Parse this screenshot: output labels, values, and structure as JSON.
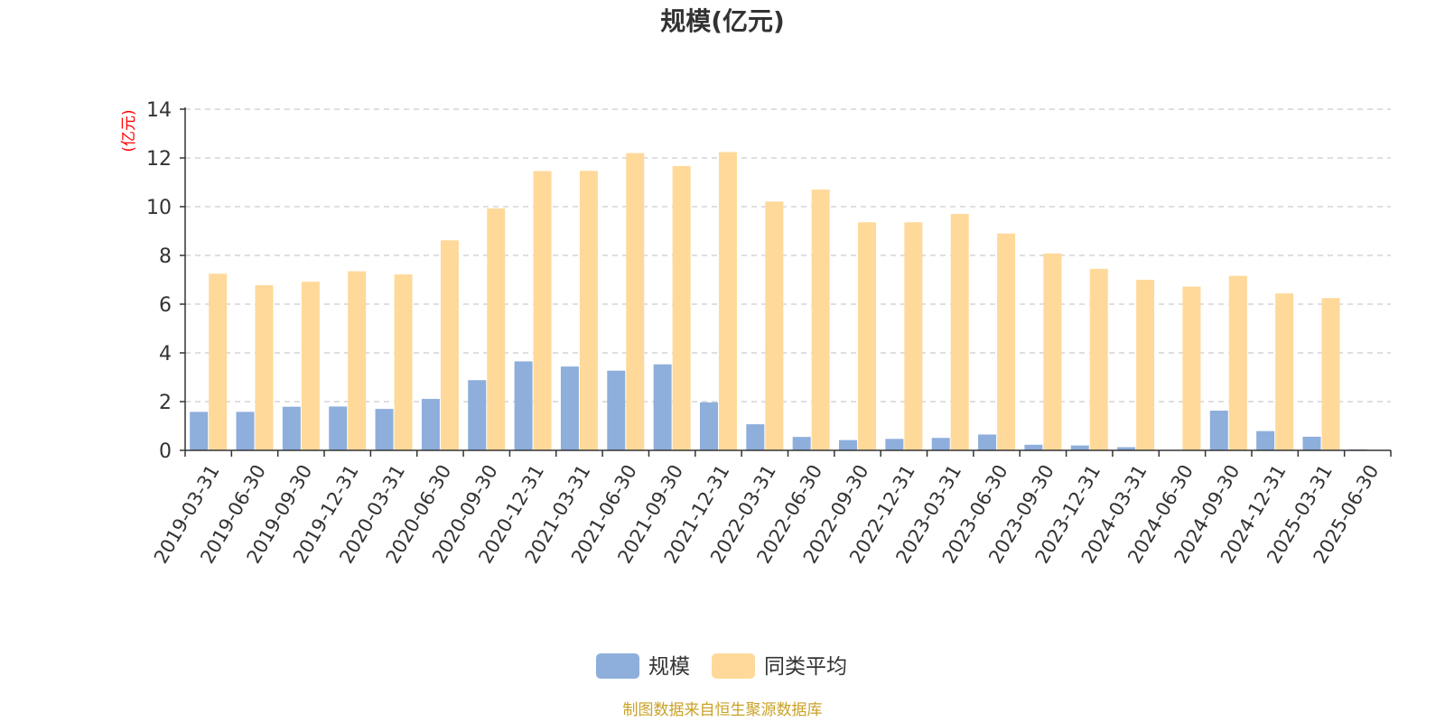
{
  "chart_data": {
    "type": "bar",
    "title": "规模(亿元)",
    "ylabel": "(亿元)",
    "ylim": [
      0,
      14
    ],
    "yticks": [
      0,
      2,
      4,
      6,
      8,
      10,
      12,
      14
    ],
    "grid": true,
    "legend_position": "bottom-center",
    "categories": [
      "2019-03-31",
      "2019-06-30",
      "2019-09-30",
      "2019-12-31",
      "2020-03-31",
      "2020-06-30",
      "2020-09-30",
      "2020-12-31",
      "2021-03-31",
      "2021-06-30",
      "2021-09-30",
      "2021-12-31",
      "2022-03-31",
      "2022-06-30",
      "2022-09-30",
      "2022-12-31",
      "2023-03-31",
      "2023-06-30",
      "2023-09-30",
      "2023-12-31",
      "2024-03-31",
      "2024-06-30",
      "2024-09-30",
      "2024-12-31",
      "2025-03-31",
      "2025-06-30"
    ],
    "series": [
      {
        "name": "规模",
        "color": "#8EAEDC",
        "values": [
          1.58,
          1.58,
          1.79,
          1.8,
          1.7,
          2.11,
          2.88,
          3.65,
          3.44,
          3.27,
          3.53,
          1.97,
          1.07,
          0.55,
          0.42,
          0.47,
          0.51,
          0.65,
          0.23,
          0.2,
          0.13,
          0.0,
          1.63,
          0.79,
          0.56,
          0.04
        ]
      },
      {
        "name": "同类平均",
        "color": "#FFD99A",
        "values": [
          7.25,
          6.78,
          6.92,
          7.35,
          7.22,
          8.62,
          9.93,
          11.46,
          11.47,
          12.2,
          11.67,
          12.24,
          10.21,
          10.7,
          9.36,
          9.36,
          9.7,
          8.9,
          8.08,
          7.45,
          7.0,
          6.72,
          7.16,
          6.44,
          6.25,
          0.0
        ]
      }
    ],
    "source": "制图数据来自恒生聚源数据库"
  },
  "colors": {
    "axis": "#333333",
    "grid": "#cccccc",
    "unit_label": "#ff0000",
    "source_text": "#c9a227"
  }
}
